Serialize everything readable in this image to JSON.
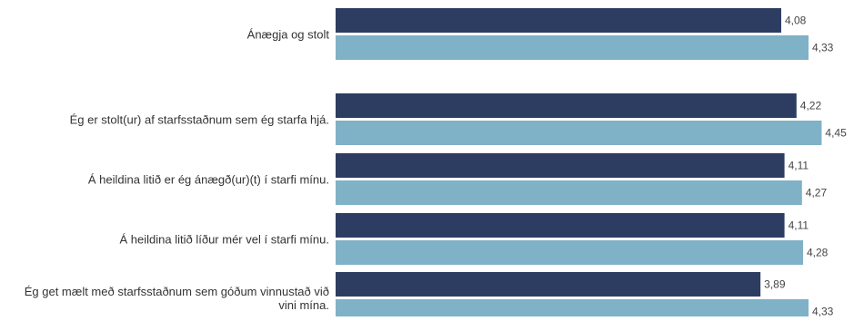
{
  "chart_data": {
    "type": "bar",
    "orientation": "horizontal",
    "categories": [
      "Ánægja og stolt",
      "Ég er stolt(ur) af starfsstaðnum sem ég starfa hjá.",
      "Á heildina litið er ég ánægð(ur)(t) í starfi mínu.",
      "Á heildina litið líður mér vel í starfi mínu.",
      "Ég get mælt með starfsstaðnum sem góðum vinnustað við vini mína."
    ],
    "series": [
      {
        "color": "#2d3d61",
        "values": [
          4.08,
          4.22,
          4.11,
          4.11,
          3.89
        ],
        "labels": [
          "4,08",
          "4,22",
          "4,11",
          "4,11",
          "3,89"
        ]
      },
      {
        "color": "#7fb1c7",
        "values": [
          4.33,
          4.45,
          4.27,
          4.28,
          4.33
        ],
        "labels": [
          "4,33",
          "4,45",
          "4,27",
          "4,28",
          "4,33"
        ]
      }
    ],
    "xlim": [
      0,
      5
    ],
    "grid": false,
    "legend": "none"
  }
}
